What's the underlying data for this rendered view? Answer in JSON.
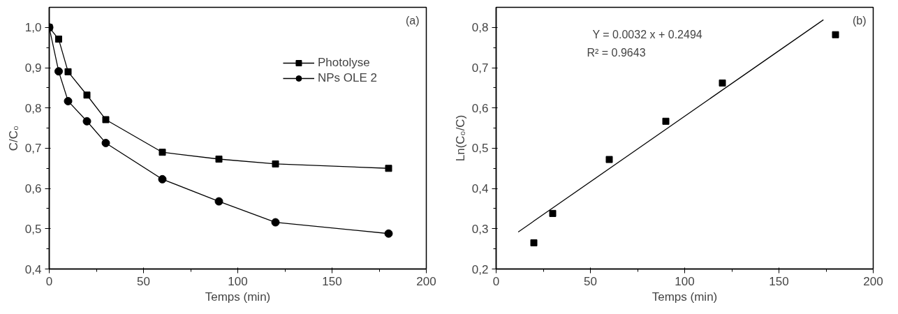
{
  "chart_data": [
    {
      "type": "line",
      "xlabel": "Temps (min)",
      "ylabel": "C/C₀",
      "annotations": [
        "(a)"
      ],
      "xlim": [
        0,
        200
      ],
      "ylim": [
        0.4,
        1.05
      ],
      "xticks": [
        0,
        50,
        100,
        150,
        200
      ],
      "yticks": [
        {
          "value": 0.4,
          "label": "0,4"
        },
        {
          "value": 0.5,
          "label": "0,5"
        },
        {
          "value": 0.6,
          "label": "0,6"
        },
        {
          "value": 0.7,
          "label": "0,7"
        },
        {
          "value": 0.8,
          "label": "0,8"
        },
        {
          "value": 0.9,
          "label": "0,9"
        },
        {
          "value": 1.0,
          "label": "1,0"
        }
      ],
      "x": [
        0,
        5,
        10,
        20,
        30,
        60,
        90,
        120,
        180
      ],
      "series": [
        {
          "name": "Photolyse",
          "color": "#000000",
          "marker": "square",
          "values": [
            1.0,
            0.971,
            0.89,
            0.832,
            0.771,
            0.69,
            0.673,
            0.661,
            0.65
          ]
        },
        {
          "name": "NPs OLE 2",
          "color": "#000000",
          "marker": "circle",
          "values": [
            1.0,
            0.891,
            0.817,
            0.767,
            0.713,
            0.623,
            0.568,
            0.516,
            0.488
          ]
        }
      ],
      "legend": "top right",
      "grid": false,
      "line_style": "solid"
    },
    {
      "type": "scatter",
      "xlabel": "Temps (min)",
      "ylabel": "Ln(C₀/C)",
      "annotations": [
        "(b)",
        "Y = 0.0032 x + 0.2494",
        "R² = 0.9643"
      ],
      "xlim": [
        0,
        200
      ],
      "ylim": [
        0.2,
        0.85
      ],
      "xticks": [
        0,
        50,
        100,
        150,
        200
      ],
      "yticks": [
        {
          "value": 0.2,
          "label": "0,2"
        },
        {
          "value": 0.3,
          "label": "0,3"
        },
        {
          "value": 0.4,
          "label": "0,4"
        },
        {
          "value": 0.5,
          "label": "0,5"
        },
        {
          "value": 0.6,
          "label": "0,6"
        },
        {
          "value": 0.7,
          "label": "0,7"
        },
        {
          "value": 0.8,
          "label": "0,8"
        }
      ],
      "x": [
        20,
        30,
        60,
        90,
        120,
        180
      ],
      "series": [
        {
          "color": "#000000",
          "marker": "square",
          "values": [
            0.265,
            0.338,
            0.472,
            0.567,
            0.662,
            0.782
          ]
        },
        {
          "type": "line",
          "color": "#000000",
          "marker": "none",
          "x": [
            11.7,
            173.6
          ],
          "values": [
            0.292,
            0.819
          ]
        }
      ],
      "grid": false
    }
  ]
}
